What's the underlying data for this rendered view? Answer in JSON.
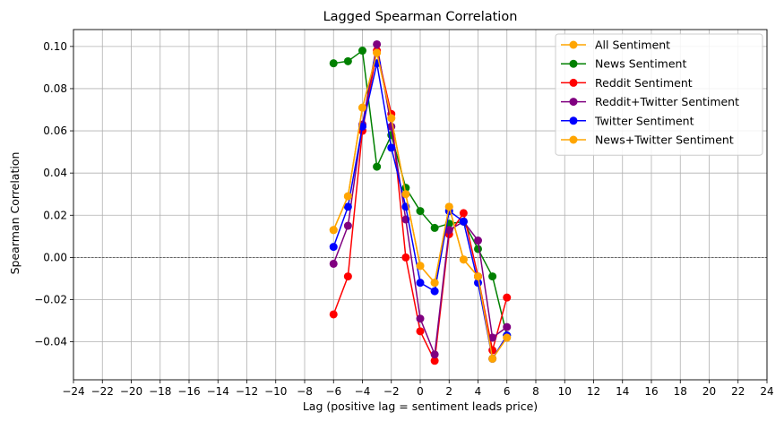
{
  "chart_data": {
    "type": "line",
    "title": "Lagged Spearman Correlation",
    "xlabel": "Lag (positive lag = sentiment leads price)",
    "ylabel": "Spearman Correlation",
    "xlim": [
      -24,
      24
    ],
    "ylim": [
      -0.058,
      0.108
    ],
    "xticks": [
      -24,
      -22,
      -20,
      -18,
      -16,
      -14,
      -12,
      -10,
      -8,
      -6,
      -4,
      -2,
      0,
      2,
      4,
      6,
      8,
      10,
      12,
      14,
      16,
      18,
      20,
      22,
      24
    ],
    "yticks": [
      -0.04,
      -0.02,
      0.0,
      0.02,
      0.04,
      0.06,
      0.08,
      0.1
    ],
    "ytick_labels": [
      "−0.04",
      "−0.02",
      "0.00",
      "0.02",
      "0.04",
      "0.06",
      "0.08",
      "0.10"
    ],
    "xtick_labels": [
      "−24",
      "−22",
      "−20",
      "−18",
      "−16",
      "−14",
      "−12",
      "−10",
      "−8",
      "−6",
      "−4",
      "−2",
      "0",
      "2",
      "4",
      "6",
      "8",
      "10",
      "12",
      "14",
      "16",
      "18",
      "20",
      "22",
      "24"
    ],
    "grid": true,
    "legend_position": "top-right",
    "reference_line": {
      "y": 0,
      "style": "dashed",
      "color": "#000000"
    },
    "x": [
      -6,
      -5,
      -4,
      -3,
      -2,
      -1,
      0,
      1,
      2,
      3,
      4,
      5,
      6
    ],
    "series": [
      {
        "name": "All Sentiment",
        "color": "#ffa500",
        "values": [
          0.013,
          0.029,
          0.071,
          0.097,
          0.066,
          0.03,
          -0.004,
          -0.012,
          0.024,
          -0.001,
          -0.009,
          -0.048,
          -0.038
        ]
      },
      {
        "name": "News Sentiment",
        "color": "#008000",
        "values": [
          0.092,
          0.093,
          0.098,
          0.043,
          0.058,
          0.033,
          0.022,
          0.014,
          0.016,
          0.017,
          0.004,
          -0.009,
          -0.037
        ]
      },
      {
        "name": "Reddit Sentiment",
        "color": "#ff0000",
        "values": [
          -0.027,
          -0.009,
          0.06,
          0.098,
          0.068,
          0.0,
          -0.035,
          -0.049,
          0.011,
          0.021,
          -0.009,
          -0.044,
          -0.019
        ]
      },
      {
        "name": "Reddit+Twitter Sentiment",
        "color": "#800080",
        "values": [
          -0.003,
          0.015,
          0.063,
          0.101,
          0.062,
          0.018,
          -0.029,
          -0.046,
          0.013,
          0.017,
          0.008,
          -0.038,
          -0.033
        ]
      },
      {
        "name": "Twitter Sentiment",
        "color": "#0000ff",
        "values": [
          0.005,
          0.024,
          0.062,
          0.092,
          0.052,
          0.024,
          -0.012,
          -0.016,
          0.022,
          0.017,
          -0.012,
          -0.048,
          -0.037
        ]
      },
      {
        "name": "News+Twitter Sentiment",
        "color": "#ffa500",
        "values": [
          0.013,
          0.029,
          0.071,
          0.097,
          0.066,
          0.03,
          -0.004,
          -0.012,
          0.024,
          -0.001,
          -0.009,
          -0.048,
          -0.038
        ]
      }
    ]
  }
}
